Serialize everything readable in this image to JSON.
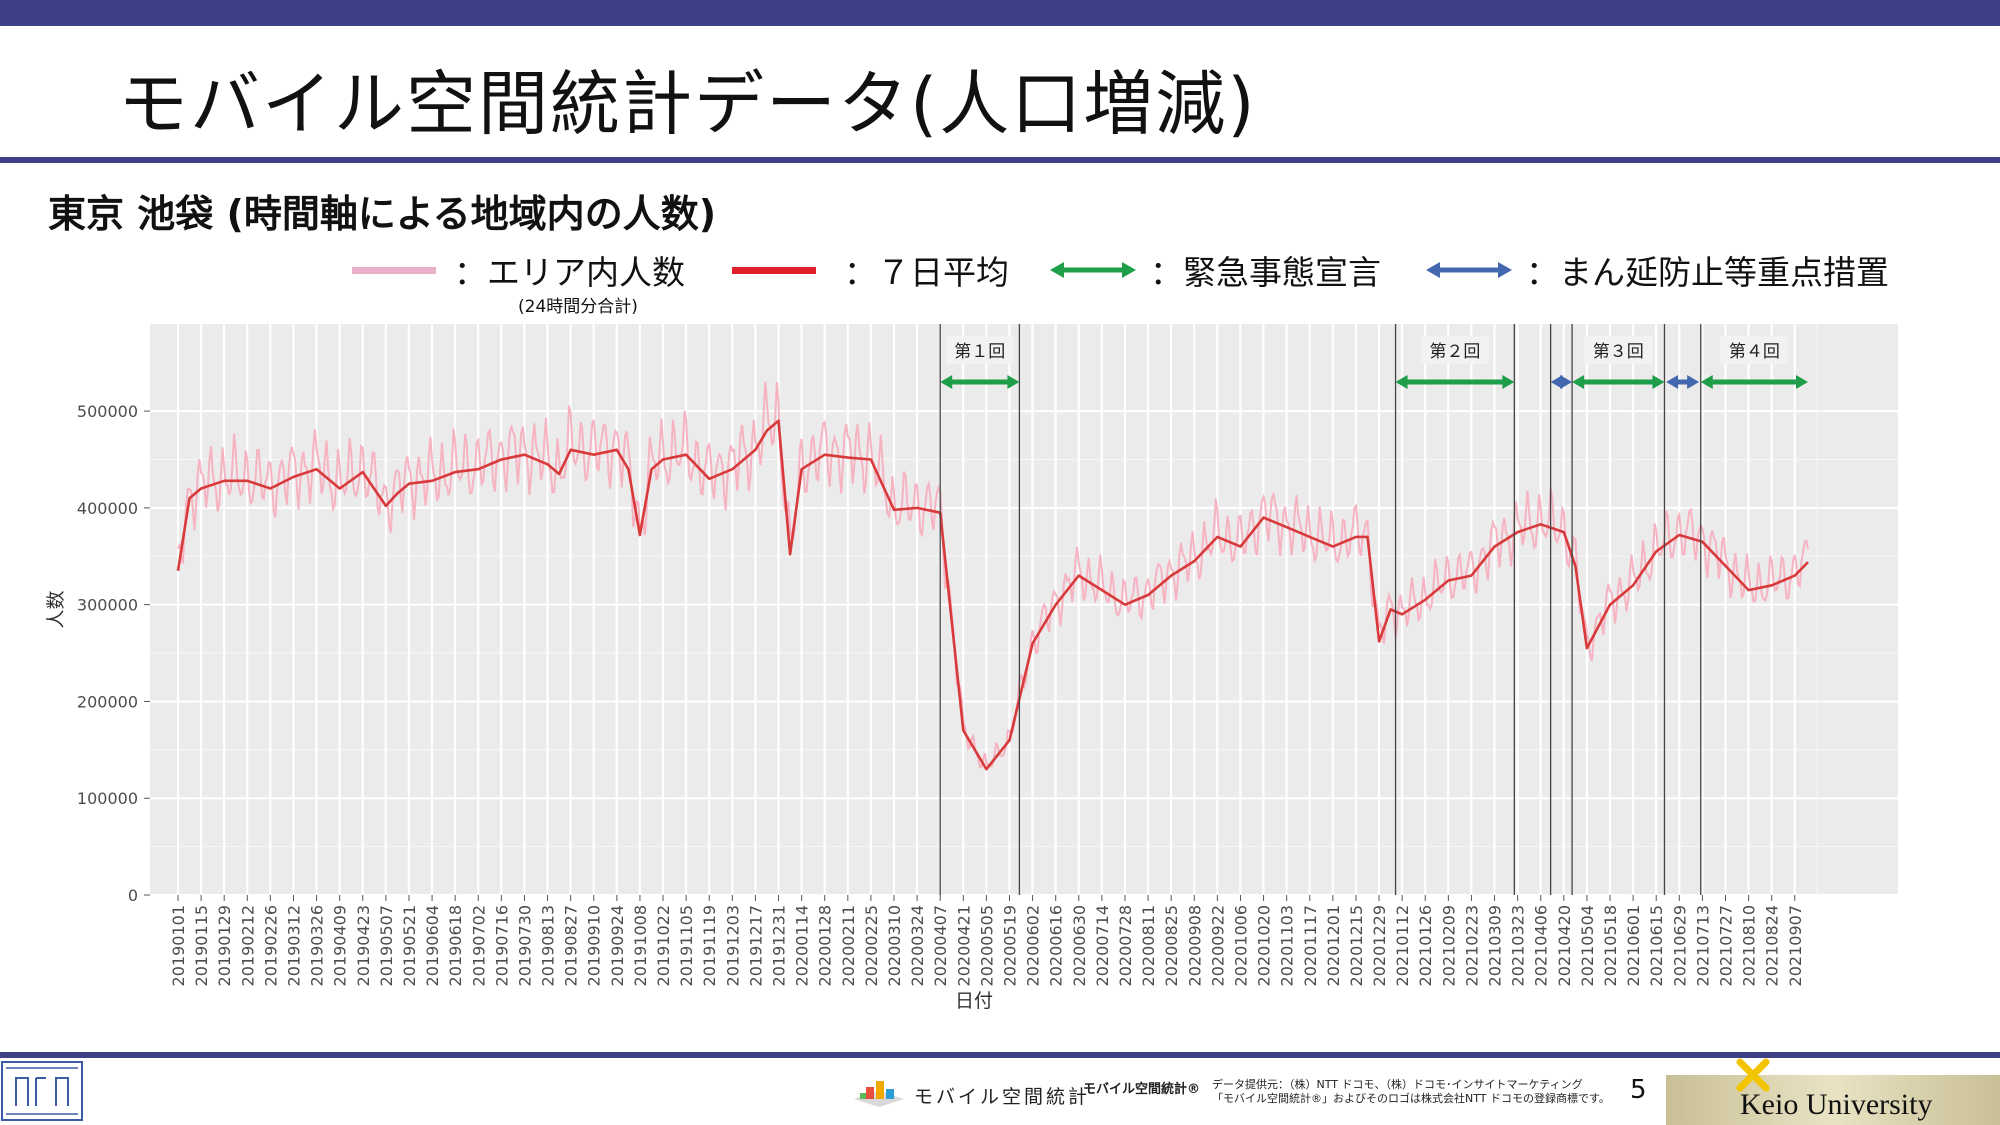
{
  "slide": {
    "title": "モバイル空間統計データ(人口増減)",
    "subtitle": "東京 池袋 (時間軸による地域内の人数)",
    "page_number": "5"
  },
  "legend": {
    "area_count": "：エリア内人数",
    "area_count_note": "(24時間分合計)",
    "avg7": "：７日平均",
    "emergency": "：緊急事態宣言",
    "priority": "：まん延防止等重点措置"
  },
  "colors": {
    "bar": "#3d3f87",
    "raw_series": "#f6b3c2",
    "avg_series": "#d8393a",
    "emergency": "#1f9e4a",
    "priority": "#4468b0",
    "plot_bg": "#ebebeb"
  },
  "footer": {
    "mobile_stats_name": "モバイル空間統計",
    "mobile_stats_reg": "モバイル空間統計®",
    "provider_line1": "データ提供元：（株）NTT ドコモ、（株）ドコモ･インサイトマーケティング",
    "provider_line2": "「モバイル空間統計®」およびそのロゴは株式会社NTT ドコモの登録商標です。",
    "university": "Keio University"
  },
  "chart_data": {
    "type": "line",
    "title": "",
    "xlabel": "日付",
    "ylabel": "人数",
    "ylim": [
      0,
      590000
    ],
    "yticks": [
      0,
      100000,
      200000,
      300000,
      400000,
      500000
    ],
    "ytick_labels": [
      "0",
      "100000",
      "200000",
      "300000",
      "400000",
      "500000"
    ],
    "grid": true,
    "legend_position": "top",
    "x_range": [
      "20190101",
      "20210915"
    ],
    "x_tick_labels": [
      "20190101",
      "20190115",
      "20190129",
      "20190212",
      "20190226",
      "20190312",
      "20190326",
      "20190409",
      "20190423",
      "20190507",
      "20190521",
      "20190604",
      "20190618",
      "20190702",
      "20190716",
      "20190730",
      "20190813",
      "20190827",
      "20190910",
      "20190924",
      "20191008",
      "20191022",
      "20191105",
      "20191119",
      "20191203",
      "20191217",
      "20191231",
      "20200114",
      "20200128",
      "20200211",
      "20200225",
      "20200310",
      "20200324",
      "20200407",
      "20200421",
      "20200505",
      "20200519",
      "20200602",
      "20200616",
      "20200630",
      "20200714",
      "20200728",
      "20200811",
      "20200825",
      "20200908",
      "20200922",
      "20201006",
      "20201020",
      "20201103",
      "20201117",
      "20201201",
      "20201215",
      "20201229",
      "20210112",
      "20210126",
      "20210209",
      "20210223",
      "20210309",
      "20210323",
      "20210406",
      "20210420",
      "20210504",
      "20210518",
      "20210601",
      "20210615",
      "20210629",
      "20210713",
      "20210727",
      "20210810",
      "20210824",
      "20210907"
    ],
    "series": [
      {
        "name": "７日平均",
        "x": [
          "20190101",
          "20190108",
          "20190115",
          "20190129",
          "20190212",
          "20190226",
          "20190312",
          "20190326",
          "20190409",
          "20190423",
          "20190507",
          "20190514",
          "20190521",
          "20190604",
          "20190618",
          "20190702",
          "20190716",
          "20190730",
          "20190813",
          "20190820",
          "20190827",
          "20190910",
          "20190924",
          "20191001",
          "20191008",
          "20191015",
          "20191022",
          "20191105",
          "20191119",
          "20191203",
          "20191217",
          "20191224",
          "20191231",
          "20200107",
          "20200114",
          "20200128",
          "20200211",
          "20200225",
          "20200310",
          "20200324",
          "20200407",
          "20200421",
          "20200505",
          "20200519",
          "20200602",
          "20200616",
          "20200630",
          "20200714",
          "20200728",
          "20200811",
          "20200825",
          "20200908",
          "20200922",
          "20201006",
          "20201020",
          "20201103",
          "20201117",
          "20201201",
          "20201215",
          "20201222",
          "20201229",
          "20210105",
          "20210112",
          "20210126",
          "20210209",
          "20210223",
          "20210309",
          "20210323",
          "20210406",
          "20210420",
          "20210427",
          "20210504",
          "20210518",
          "20210601",
          "20210615",
          "20210629",
          "20210713",
          "20210727",
          "20210810",
          "20210824",
          "20210907",
          "20210915"
        ],
        "y": [
          335000,
          410000,
          420000,
          428000,
          428000,
          420000,
          432000,
          440000,
          420000,
          437000,
          402000,
          415000,
          425000,
          428000,
          437000,
          440000,
          450000,
          455000,
          445000,
          435000,
          460000,
          455000,
          460000,
          440000,
          372000,
          440000,
          450000,
          455000,
          430000,
          440000,
          460000,
          480000,
          490000,
          352000,
          440000,
          455000,
          452000,
          450000,
          398000,
          400000,
          395000,
          170000,
          130000,
          160000,
          260000,
          300000,
          330000,
          315000,
          300000,
          310000,
          330000,
          345000,
          370000,
          360000,
          390000,
          380000,
          370000,
          360000,
          370000,
          370000,
          262000,
          295000,
          290000,
          305000,
          325000,
          330000,
          360000,
          375000,
          383000,
          375000,
          340000,
          255000,
          300000,
          320000,
          355000,
          372000,
          365000,
          340000,
          315000,
          320000,
          330000,
          344000
        ]
      }
    ],
    "raw_series_name": "エリア内人数",
    "spans": [
      {
        "label": "第１回",
        "kind": "emergency",
        "segments": [
          {
            "from": "20200407",
            "to": "20200525"
          }
        ]
      },
      {
        "label": "第２回",
        "kind": "emergency",
        "segments": [
          {
            "from": "20210108",
            "to": "20210321"
          }
        ]
      },
      {
        "label": "第３回",
        "kind": "emergency",
        "segments": [
          {
            "from": "20210425",
            "to": "20210620"
          }
        ]
      },
      {
        "label": "第４回",
        "kind": "emergency",
        "segments": [
          {
            "from": "20210712",
            "to": "20210915"
          }
        ]
      },
      {
        "label": "",
        "kind": "priority",
        "segments": [
          {
            "from": "20210412",
            "to": "20210425"
          },
          {
            "from": "20210621",
            "to": "20210711"
          }
        ]
      }
    ],
    "boundaries": [
      "20200407",
      "20200525",
      "20210108",
      "20210321",
      "20210412",
      "20210425",
      "20210620",
      "20210712"
    ]
  }
}
